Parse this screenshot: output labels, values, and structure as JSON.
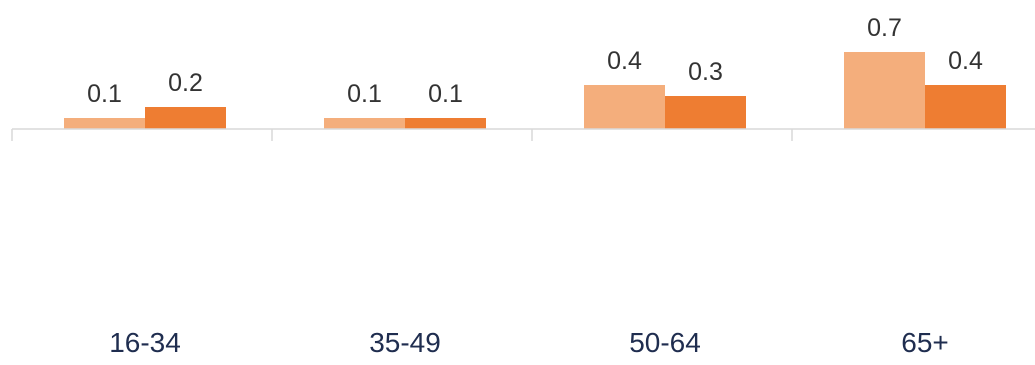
{
  "chart_data": {
    "type": "bar",
    "title": "",
    "xlabel": "",
    "ylabel": "",
    "categories": [
      "16-34",
      "35-49",
      "50-64",
      "65+"
    ],
    "series": [
      {
        "color": "#f4ae7c",
        "values": [
          0.1,
          0.1,
          0.4,
          0.7
        ]
      },
      {
        "color": "#ee7d32",
        "values": [
          0.2,
          0.1,
          0.3,
          0.4
        ]
      }
    ],
    "ylim": [
      0,
      0.8
    ],
    "grid": false,
    "legend": "none"
  }
}
